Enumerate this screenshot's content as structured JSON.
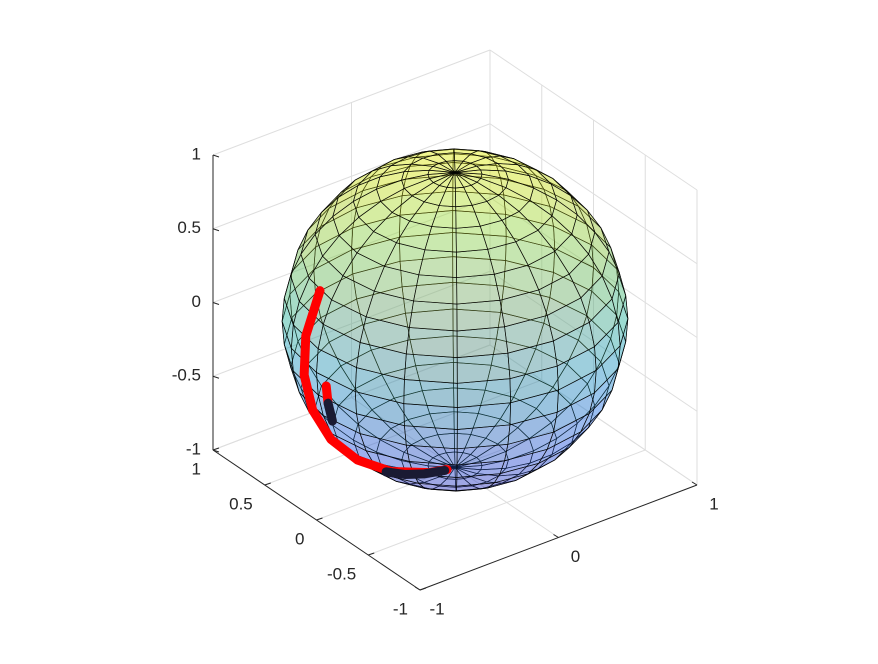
{
  "chart_data": {
    "type": "sphere3d",
    "xlim": [
      -1,
      1
    ],
    "xticks": [
      -1,
      0,
      1
    ],
    "ylim": [
      -1,
      1
    ],
    "yticks": [
      -1,
      -0.5,
      0,
      0.5,
      1
    ],
    "zlim": [
      -1,
      1
    ],
    "zticks": [
      -1,
      -0.5,
      0,
      0.5,
      1
    ],
    "grid": true,
    "series": [
      {
        "color": "#ff0000",
        "x": [
          -0.882,
          -0.975,
          -0.986,
          -0.93,
          -0.811,
          -0.636,
          -0.418,
          -0.172,
          -0.052
        ],
        "y": [
          0.124,
          0.137,
          0.138,
          0.131,
          0.114,
          0.089,
          0.059,
          0.024,
          0.007
        ],
        "z": [
          0.454,
          0.174,
          -0.087,
          -0.342,
          -0.574,
          -0.766,
          -0.906,
          -0.985,
          -0.999
        ]
      },
      {
        "color": "#ff0000",
        "x": [
          -0.995,
          -0.981
        ],
        "y": [
          -0.087,
          -0.086
        ],
        "z": [
          -0.052,
          -0.174
        ]
      },
      {
        "color": "#1a1a33",
        "x": [
          -0.981,
          -0.947
        ],
        "y": [
          -0.086,
          -0.083
        ],
        "z": [
          -0.174,
          -0.309
        ]
      },
      {
        "color": "#1a1a33",
        "x": [
          -0.467,
          -0.341,
          -0.207,
          -0.07
        ],
        "y": [
          0.041,
          0.03,
          0.018,
          0.006
        ],
        "z": [
          -0.883,
          -0.94,
          -0.978,
          -0.998
        ]
      }
    ]
  }
}
